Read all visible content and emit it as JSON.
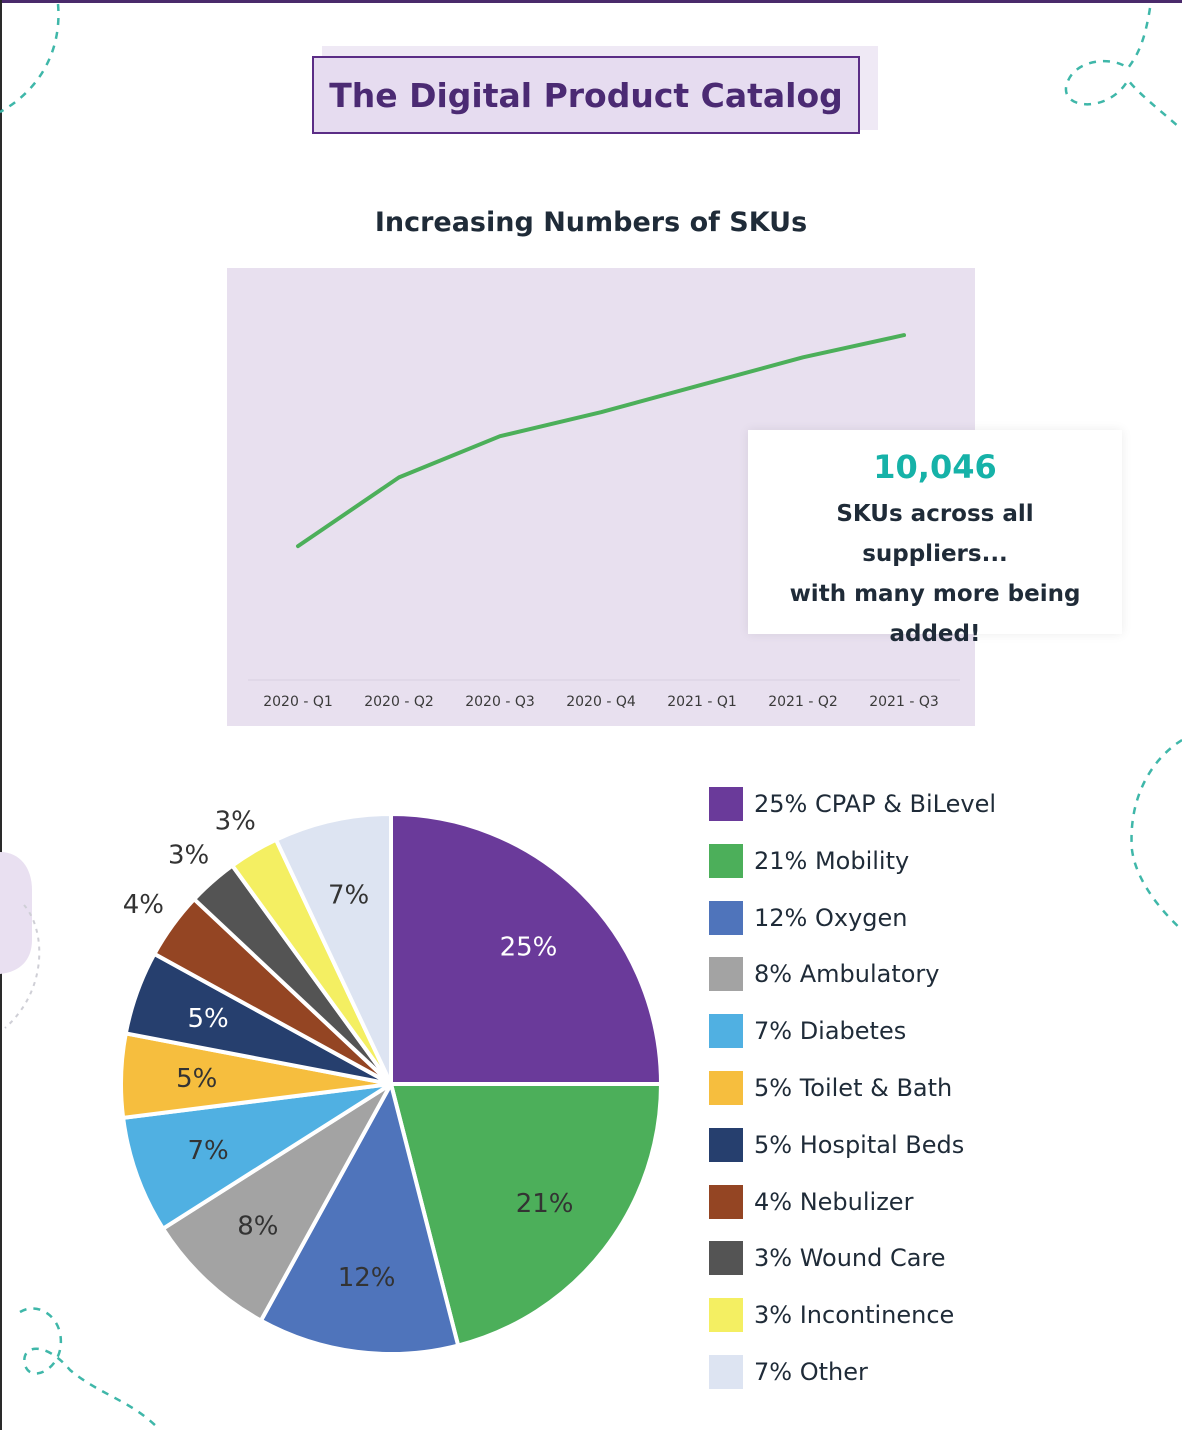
{
  "page": {
    "title": "The Digital Product Catalog"
  },
  "line_chart": {
    "title": "Increasing Numbers of SKUs",
    "color": "#4caf5a",
    "background": "#e8e0ef",
    "callout": {
      "value": "10,046",
      "text_lines": [
        "SKUs across all suppliers...",
        "with many more being",
        "added!"
      ]
    }
  },
  "pie_chart": {
    "border_color": "#ffffff"
  },
  "chart_data": [
    {
      "type": "line",
      "title": "Increasing Numbers of SKUs",
      "categories": [
        "2020 - Q1",
        "2020 - Q2",
        "2020 - Q3",
        "2020 - Q4",
        "2021 - Q1",
        "2021 - Q2",
        "2021 - Q3"
      ],
      "series": [
        {
          "name": "SKUs",
          "values": [
            3900,
            5900,
            7100,
            7800,
            8600,
            9400,
            10046
          ]
        }
      ],
      "ylim": [
        0,
        12000
      ],
      "xlabel": "",
      "ylabel": ""
    },
    {
      "type": "pie",
      "title": "",
      "slices": [
        {
          "label": "CPAP & BiLevel",
          "value": 25,
          "pct_label": "25%",
          "legend_label": "25% CPAP & BiLevel",
          "color": "#6a3a9a",
          "label_color": "#ffffff"
        },
        {
          "label": "Mobility",
          "value": 21,
          "pct_label": "21%",
          "legend_label": "21% Mobility",
          "color": "#4caf5a",
          "label_color": "#333333"
        },
        {
          "label": "Oxygen",
          "value": 12,
          "pct_label": "12%",
          "legend_label": "12% Oxygen",
          "color": "#4f74bb",
          "label_color": "#333333"
        },
        {
          "label": "Ambulatory",
          "value": 8,
          "pct_label": "8%",
          "legend_label": "8% Ambulatory",
          "color": "#a3a3a3",
          "label_color": "#333333"
        },
        {
          "label": "Diabetes",
          "value": 7,
          "pct_label": "7%",
          "legend_label": "7% Diabetes",
          "color": "#50b0e2",
          "label_color": "#333333"
        },
        {
          "label": "Toilet & Bath",
          "value": 5,
          "pct_label": "5%",
          "legend_label": "5% Toilet & Bath",
          "color": "#f6be3e",
          "label_color": "#333333"
        },
        {
          "label": "Hospital Beds",
          "value": 5,
          "pct_label": "5%",
          "legend_label": "5% Hospital Beds",
          "color": "#263f6e",
          "label_color": "#ffffff"
        },
        {
          "label": "Nebulizer",
          "value": 4,
          "pct_label": "4%",
          "legend_label": "4% Nebulizer",
          "color": "#944523",
          "label_color": "#333333"
        },
        {
          "label": "Wound Care",
          "value": 3,
          "pct_label": "3%",
          "legend_label": "3% Wound Care",
          "color": "#545454",
          "label_color": "#333333"
        },
        {
          "label": "Incontinence",
          "value": 3,
          "pct_label": "3%",
          "legend_label": "3% Incontinence",
          "color": "#f4ef62",
          "label_color": "#333333"
        },
        {
          "label": "Other",
          "value": 7,
          "pct_label": "7%",
          "legend_label": "7% Other",
          "color": "#dde4f2",
          "label_color": "#333333"
        }
      ]
    }
  ]
}
